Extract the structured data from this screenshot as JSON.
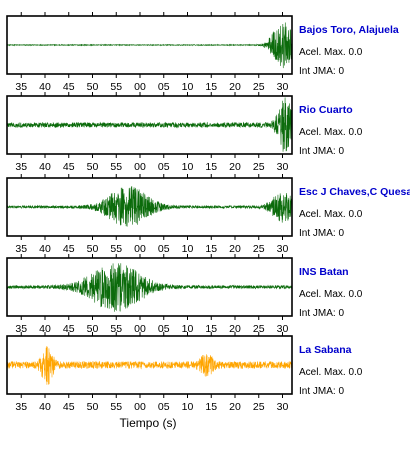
{
  "colors": {
    "trace_default": "#0b6b0b",
    "trace_highlight": "#ffa500",
    "station_name": "#0000cc",
    "frame": "#000000",
    "background": "#ffffff"
  },
  "chart_data": {
    "type": "line",
    "xlabel": "Tiempo (s)",
    "x_tick_labels": [
      "35",
      "40",
      "45",
      "50",
      "55",
      "00",
      "05",
      "10",
      "15",
      "20",
      "25",
      "30"
    ],
    "x_tick_values": [
      35,
      40,
      45,
      50,
      55,
      60,
      65,
      70,
      75,
      80,
      85,
      90
    ],
    "xlim": [
      32,
      92
    ],
    "grid": false,
    "panels": [
      {
        "station": "Bajos Toro, Alajuela",
        "accel_label": "Acel. Max. 0.0",
        "intensity_label": "Int JMA: 0",
        "trace_color": "#0b6b0b",
        "noise_level": 0.015,
        "events": [
          {
            "t": 90.0,
            "amp": 0.85,
            "width": 1.8
          }
        ]
      },
      {
        "station": "Rio Cuarto",
        "accel_label": "Acel. Max. 0.0",
        "intensity_label": "Int JMA: 0",
        "trace_color": "#0b6b0b",
        "noise_level": 0.09,
        "events": [
          {
            "t": 90.5,
            "amp": 0.95,
            "width": 1.2
          }
        ]
      },
      {
        "station": "Esc J Chaves,C Quesada",
        "accel_label": "Acel. Max. 0.0",
        "intensity_label": "Int JMA: 0",
        "trace_color": "#0b6b0b",
        "noise_level": 0.05,
        "events": [
          {
            "t": 57.5,
            "amp": 0.75,
            "width": 3.5
          },
          {
            "t": 90.0,
            "amp": 0.55,
            "width": 1.8
          }
        ]
      },
      {
        "station": "INS Batan",
        "accel_label": "Acel. Max. 0.0",
        "intensity_label": "Int JMA: 0",
        "trace_color": "#0b6b0b",
        "noise_level": 0.06,
        "events": [
          {
            "t": 55.0,
            "amp": 0.85,
            "width": 4.5
          }
        ]
      },
      {
        "station": "La Sabana",
        "accel_label": "Acel. Max. 0.0",
        "intensity_label": "Int JMA: 0",
        "trace_color": "#ffa500",
        "noise_level": 0.13,
        "events": [
          {
            "t": 40.5,
            "amp": 0.7,
            "width": 0.9
          },
          {
            "t": 74.0,
            "amp": 0.35,
            "width": 1.0
          }
        ]
      }
    ]
  }
}
